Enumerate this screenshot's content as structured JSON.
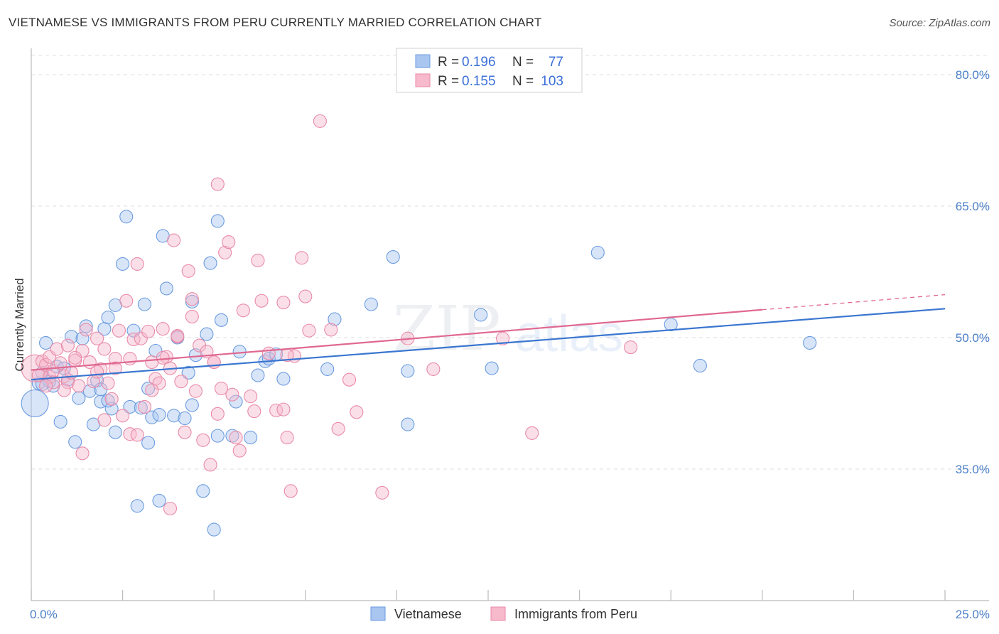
{
  "header": {
    "title": "VIETNAMESE VS IMMIGRANTS FROM PERU CURRENTLY MARRIED CORRELATION CHART",
    "source": "Source: ZipAtlas.com"
  },
  "watermark": {
    "zip": "ZIP",
    "atlas": "atlas"
  },
  "legend_box": {
    "rows": [
      {
        "r_label": "R = ",
        "r_value": "0.196",
        "n_label": "N = ",
        "n_value": "77",
        "color": "#a9c6f0",
        "stroke": "#6b9be0"
      },
      {
        "r_label": "R = ",
        "r_value": "0.155",
        "n_label": "N = ",
        "n_value": "103",
        "color": "#f7b9cc",
        "stroke": "#e88aa8"
      }
    ]
  },
  "bottom_legend": [
    {
      "label": "Vietnamese",
      "color": "#a9c6f0",
      "stroke": "#6b9be0"
    },
    {
      "label": "Immigrants from Peru",
      "color": "#f7b9cc",
      "stroke": "#e88aa8"
    }
  ],
  "chart_data": {
    "type": "scatter",
    "ylabel": "Currently Married",
    "xlim": [
      0,
      25
    ],
    "ylim": [
      20,
      83
    ],
    "x_tick_labels": [
      "0.0%",
      "25.0%"
    ],
    "y_ticks": [
      35,
      50,
      65,
      80
    ],
    "y_tick_labels": [
      "35.0%",
      "50.0%",
      "65.0%",
      "80.0%"
    ],
    "grid": true,
    "legend_placement": "top-center",
    "colors": {
      "vietnamese": "#3a76d0",
      "peru": "#e06890"
    },
    "series": [
      {
        "name": "Vietnamese",
        "color": "#3a76d0",
        "trend": {
          "x": [
            0,
            25
          ],
          "y": [
            45.2,
            53.3
          ],
          "dashed_from": null
        },
        "points": [
          [
            0.1,
            42.5,
            1
          ],
          [
            0.2,
            44.8,
            0
          ],
          [
            0.3,
            46.0,
            0
          ],
          [
            0.4,
            49.4,
            0
          ],
          [
            0.5,
            45.0,
            0
          ],
          [
            0.6,
            44.5,
            0
          ],
          [
            0.7,
            46.7,
            0
          ],
          [
            0.8,
            40.4,
            0
          ],
          [
            1.0,
            45.2,
            0
          ],
          [
            1.1,
            50.1,
            0
          ],
          [
            1.2,
            38.1,
            0
          ],
          [
            1.3,
            43.1,
            0
          ],
          [
            1.4,
            49.9,
            0
          ],
          [
            1.5,
            51.3,
            0
          ],
          [
            1.6,
            43.9,
            0
          ],
          [
            1.7,
            40.1,
            0
          ],
          [
            1.8,
            45.1,
            0
          ],
          [
            1.9,
            42.7,
            0
          ],
          [
            2.0,
            51.0,
            0
          ],
          [
            2.1,
            52.3,
            0
          ],
          [
            2.2,
            41.9,
            0
          ],
          [
            2.3,
            53.7,
            0
          ],
          [
            2.3,
            39.2,
            0
          ],
          [
            2.5,
            58.4,
            0
          ],
          [
            2.6,
            63.8,
            0
          ],
          [
            2.7,
            42.1,
            0
          ],
          [
            2.8,
            50.8,
            0
          ],
          [
            2.9,
            30.8,
            0
          ],
          [
            3.0,
            42.0,
            0
          ],
          [
            3.1,
            53.8,
            0
          ],
          [
            3.2,
            38.0,
            0
          ],
          [
            3.2,
            44.2,
            0
          ],
          [
            3.3,
            40.9,
            0
          ],
          [
            3.4,
            48.5,
            0
          ],
          [
            3.5,
            41.2,
            0
          ],
          [
            3.5,
            31.4,
            0
          ],
          [
            3.6,
            61.6,
            0
          ],
          [
            3.7,
            55.6,
            0
          ],
          [
            3.9,
            41.1,
            0
          ],
          [
            4.0,
            50.0,
            0
          ],
          [
            4.2,
            40.8,
            0
          ],
          [
            4.3,
            46.0,
            0
          ],
          [
            4.4,
            42.3,
            0
          ],
          [
            4.4,
            54.1,
            0
          ],
          [
            4.5,
            48.0,
            0
          ],
          [
            4.7,
            32.5,
            0
          ],
          [
            4.8,
            50.4,
            0
          ],
          [
            4.9,
            58.5,
            0
          ],
          [
            5.0,
            28.1,
            0
          ],
          [
            5.1,
            38.8,
            0
          ],
          [
            5.1,
            63.3,
            0
          ],
          [
            5.2,
            52.0,
            0
          ],
          [
            5.5,
            38.8,
            0
          ],
          [
            5.6,
            42.7,
            0
          ],
          [
            5.7,
            48.4,
            0
          ],
          [
            6.0,
            38.6,
            0
          ],
          [
            6.2,
            45.7,
            0
          ],
          [
            6.4,
            47.3,
            0
          ],
          [
            6.5,
            47.6,
            0
          ],
          [
            6.7,
            48.1,
            0
          ],
          [
            6.9,
            45.3,
            0
          ],
          [
            8.1,
            46.4,
            0
          ],
          [
            8.3,
            52.1,
            0
          ],
          [
            9.3,
            53.8,
            0
          ],
          [
            9.9,
            59.2,
            0
          ],
          [
            10.3,
            40.1,
            0
          ],
          [
            10.3,
            46.2,
            0
          ],
          [
            12.3,
            52.6,
            0
          ],
          [
            12.6,
            46.5,
            0
          ],
          [
            15.5,
            59.7,
            0
          ],
          [
            17.5,
            51.5,
            0
          ],
          [
            18.3,
            46.8,
            0
          ],
          [
            21.3,
            49.4,
            0
          ],
          [
            0.3,
            44.7,
            0
          ],
          [
            0.9,
            46.5,
            0
          ],
          [
            1.9,
            44.1,
            0
          ],
          [
            2.1,
            42.8,
            0
          ]
        ]
      },
      {
        "name": "Immigrants from Peru",
        "color": "#e06890",
        "trend": {
          "x": [
            0,
            25
          ],
          "y": [
            46.3,
            54.9
          ],
          "dashed_from": 20
        },
        "points": [
          [
            0.1,
            46.5,
            1
          ],
          [
            0.2,
            45.7,
            0
          ],
          [
            0.3,
            47.3,
            0
          ],
          [
            0.4,
            46.9,
            0
          ],
          [
            0.5,
            47.8,
            0
          ],
          [
            0.5,
            45.5,
            0
          ],
          [
            0.6,
            46.2,
            0
          ],
          [
            0.7,
            48.7,
            0
          ],
          [
            0.8,
            47.1,
            0
          ],
          [
            0.9,
            45.6,
            0
          ],
          [
            1.0,
            49.1,
            0
          ],
          [
            1.0,
            44.9,
            0
          ],
          [
            1.1,
            46.0,
            0
          ],
          [
            1.2,
            47.4,
            0
          ],
          [
            1.3,
            44.5,
            0
          ],
          [
            1.4,
            48.5,
            0
          ],
          [
            1.5,
            50.9,
            0
          ],
          [
            1.6,
            47.2,
            0
          ],
          [
            1.7,
            45.0,
            0
          ],
          [
            1.8,
            49.9,
            0
          ],
          [
            1.9,
            46.4,
            0
          ],
          [
            2.0,
            48.7,
            0
          ],
          [
            2.1,
            44.8,
            0
          ],
          [
            2.2,
            43.0,
            0
          ],
          [
            2.3,
            47.6,
            0
          ],
          [
            2.4,
            50.8,
            0
          ],
          [
            2.5,
            41.1,
            0
          ],
          [
            2.6,
            54.2,
            0
          ],
          [
            2.7,
            39.0,
            0
          ],
          [
            2.8,
            49.8,
            0
          ],
          [
            2.9,
            38.9,
            0
          ],
          [
            3.0,
            49.9,
            0
          ],
          [
            3.1,
            42.1,
            0
          ],
          [
            3.2,
            50.7,
            0
          ],
          [
            3.3,
            47.2,
            0
          ],
          [
            3.4,
            45.3,
            0
          ],
          [
            3.5,
            44.8,
            0
          ],
          [
            3.6,
            51.0,
            0
          ],
          [
            3.7,
            47.8,
            0
          ],
          [
            3.8,
            30.5,
            0
          ],
          [
            3.9,
            61.1,
            0
          ],
          [
            4.0,
            50.1,
            0
          ],
          [
            4.1,
            45.0,
            0
          ],
          [
            4.2,
            39.2,
            0
          ],
          [
            4.3,
            57.6,
            0
          ],
          [
            4.4,
            54.4,
            0
          ],
          [
            4.5,
            43.9,
            0
          ],
          [
            4.6,
            49.1,
            0
          ],
          [
            4.7,
            38.3,
            0
          ],
          [
            4.8,
            48.4,
            0
          ],
          [
            4.9,
            35.5,
            0
          ],
          [
            5.0,
            47.2,
            0
          ],
          [
            5.1,
            41.3,
            0
          ],
          [
            5.2,
            44.2,
            0
          ],
          [
            5.3,
            59.7,
            0
          ],
          [
            5.4,
            60.9,
            0
          ],
          [
            5.5,
            43.5,
            0
          ],
          [
            5.6,
            38.6,
            0
          ],
          [
            5.7,
            37.1,
            0
          ],
          [
            5.8,
            53.1,
            0
          ],
          [
            6.0,
            43.3,
            0
          ],
          [
            6.1,
            41.6,
            0
          ],
          [
            6.2,
            58.8,
            0
          ],
          [
            6.3,
            54.2,
            0
          ],
          [
            6.5,
            48.2,
            0
          ],
          [
            6.7,
            41.7,
            0
          ],
          [
            6.9,
            54.0,
            0
          ],
          [
            7.0,
            38.6,
            0
          ],
          [
            7.1,
            32.5,
            0
          ],
          [
            7.2,
            47.9,
            0
          ],
          [
            7.4,
            59.1,
            0
          ],
          [
            7.5,
            54.7,
            0
          ],
          [
            7.6,
            50.8,
            0
          ],
          [
            7.9,
            74.7,
            0
          ],
          [
            8.2,
            50.9,
            0
          ],
          [
            8.4,
            39.6,
            0
          ],
          [
            8.7,
            45.2,
            0
          ],
          [
            8.9,
            41.5,
            0
          ],
          [
            9.6,
            32.3,
            0
          ],
          [
            10.3,
            49.9,
            0
          ],
          [
            11.0,
            46.4,
            0
          ],
          [
            12.9,
            49.9,
            0
          ],
          [
            13.7,
            39.1,
            0
          ],
          [
            16.4,
            48.9,
            0
          ],
          [
            1.4,
            36.8,
            0
          ],
          [
            5.1,
            67.5,
            0
          ],
          [
            2.9,
            58.4,
            0
          ],
          [
            2.3,
            46.5,
            0
          ],
          [
            0.6,
            44.9,
            0
          ],
          [
            1.8,
            46.1,
            0
          ],
          [
            3.3,
            44.0,
            0
          ],
          [
            4.0,
            50.2,
            0
          ],
          [
            2.7,
            47.6,
            0
          ],
          [
            1.2,
            47.7,
            0
          ],
          [
            3.8,
            46.5,
            0
          ],
          [
            0.4,
            44.5,
            0
          ],
          [
            2.0,
            40.6,
            0
          ],
          [
            4.4,
            52.4,
            0
          ],
          [
            6.9,
            41.8,
            0
          ],
          [
            5.0,
            47.2,
            0
          ],
          [
            0.9,
            44.0,
            0
          ],
          [
            7.0,
            48.0,
            0
          ],
          [
            3.6,
            47.7,
            0
          ]
        ]
      }
    ]
  }
}
